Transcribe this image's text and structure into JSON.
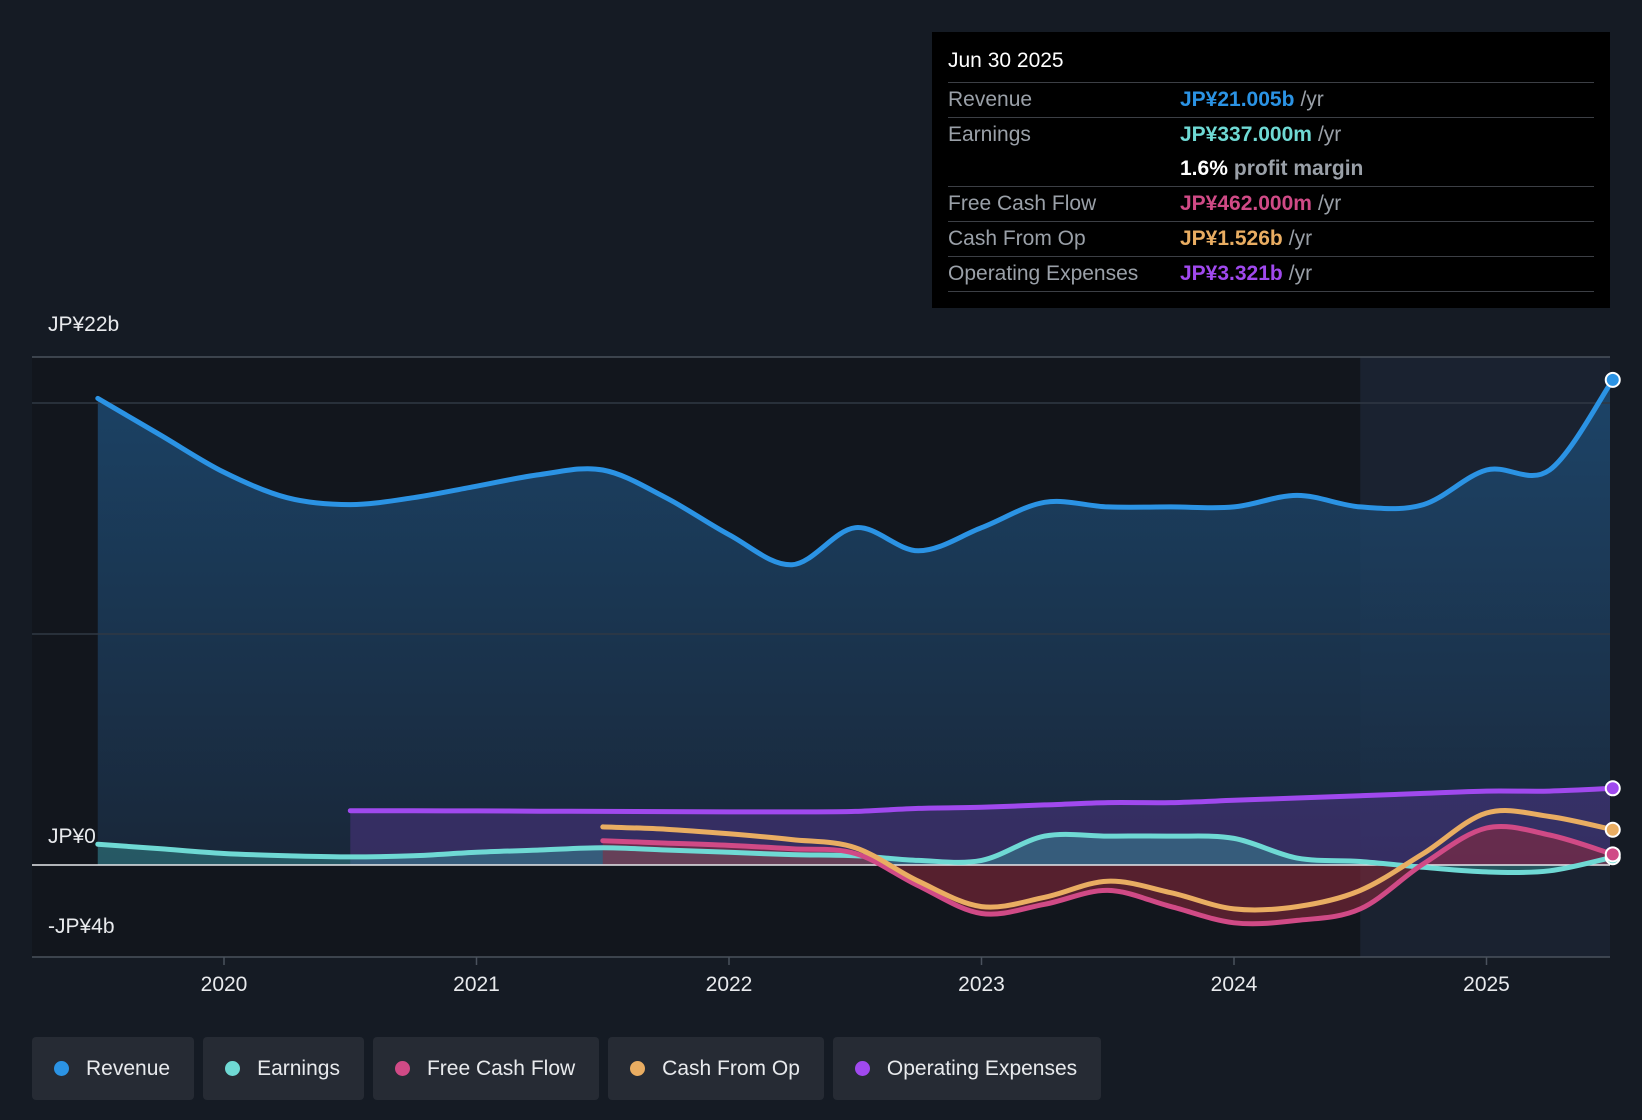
{
  "colors": {
    "revenue": "#2b93e4",
    "earnings": "#6fd9d4",
    "free_cash_flow": "#d04a86",
    "cash_from_op": "#e9ad62",
    "operating_expenses": "#a049ee"
  },
  "tooltip": {
    "date": "Jun 30 2025",
    "rows": [
      {
        "label": "Revenue",
        "value": "JP¥21.005b",
        "unit": "/yr"
      },
      {
        "label": "Earnings",
        "value": "JP¥337.000m",
        "unit": "/yr"
      },
      {
        "label": "",
        "value": "1.6%",
        "unit": "profit margin"
      },
      {
        "label": "Free Cash Flow",
        "value": "JP¥462.000m",
        "unit": "/yr"
      },
      {
        "label": "Cash From Op",
        "value": "JP¥1.526b",
        "unit": "/yr"
      },
      {
        "label": "Operating Expenses",
        "value": "JP¥3.321b",
        "unit": "/yr"
      }
    ]
  },
  "legend": {
    "items": [
      {
        "label": "Revenue",
        "icon": "revenue-dot-icon"
      },
      {
        "label": "Earnings",
        "icon": "earnings-dot-icon"
      },
      {
        "label": "Free Cash Flow",
        "icon": "free-cash-flow-dot-icon"
      },
      {
        "label": "Cash From Op",
        "icon": "cash-from-op-dot-icon"
      },
      {
        "label": "Operating Expenses",
        "icon": "operating-expenses-dot-icon"
      }
    ]
  },
  "chart_data": {
    "type": "area",
    "title": "",
    "xlabel": "",
    "ylabel": "",
    "y_tick_labels": [
      "JP¥22b",
      "JP¥0",
      "-JP¥4b"
    ],
    "y_ticks": [
      22,
      0,
      -4
    ],
    "x_tick_labels": [
      "2020",
      "2021",
      "2022",
      "2023",
      "2024",
      "2025"
    ],
    "x_ticks": [
      2020,
      2021,
      2022,
      2023,
      2024,
      2025
    ],
    "xlim": [
      2019.25,
      2025.5
    ],
    "ylim": [
      -4,
      22
    ],
    "gridlines": [
      20,
      10
    ],
    "shaded_from": 2024.5,
    "series": [
      {
        "name": "Revenue",
        "key": "revenue",
        "x": [
          2019.5,
          2019.75,
          2020.0,
          2020.25,
          2020.5,
          2020.75,
          2021.0,
          2021.25,
          2021.5,
          2021.75,
          2022.0,
          2022.25,
          2022.5,
          2022.75,
          2023.0,
          2023.25,
          2023.5,
          2023.75,
          2024.0,
          2024.25,
          2024.5,
          2024.75,
          2025.0,
          2025.25,
          2025.5
        ],
        "values": [
          20.2,
          18.6,
          17.0,
          15.9,
          15.6,
          15.9,
          16.4,
          16.9,
          17.1,
          15.9,
          14.3,
          13.0,
          14.6,
          13.6,
          14.6,
          15.7,
          15.5,
          15.5,
          15.5,
          16.0,
          15.5,
          15.6,
          17.1,
          17.1,
          21.0
        ]
      },
      {
        "name": "Earnings",
        "key": "earnings",
        "x": [
          2019.5,
          2019.75,
          2020.0,
          2020.25,
          2020.5,
          2020.75,
          2021.0,
          2021.25,
          2021.5,
          2021.75,
          2022.0,
          2022.25,
          2022.5,
          2022.75,
          2023.0,
          2023.25,
          2023.5,
          2023.75,
          2024.0,
          2024.25,
          2024.5,
          2024.75,
          2025.0,
          2025.25,
          2025.5
        ],
        "values": [
          0.9,
          0.7,
          0.5,
          0.4,
          0.35,
          0.4,
          0.55,
          0.65,
          0.75,
          0.65,
          0.55,
          0.45,
          0.4,
          0.2,
          0.2,
          1.25,
          1.25,
          1.25,
          1.15,
          0.3,
          0.15,
          -0.1,
          -0.3,
          -0.25,
          0.337
        ]
      },
      {
        "name": "Free Cash Flow",
        "key": "free_cash_flow",
        "x": [
          2021.5,
          2021.75,
          2022.0,
          2022.25,
          2022.5,
          2022.75,
          2023.0,
          2023.25,
          2023.5,
          2023.75,
          2024.0,
          2024.25,
          2024.5,
          2024.75,
          2025.0,
          2025.25,
          2025.5
        ],
        "values": [
          1.05,
          0.95,
          0.85,
          0.7,
          0.5,
          -0.9,
          -2.1,
          -1.7,
          -1.1,
          -1.8,
          -2.5,
          -2.4,
          -1.9,
          0.05,
          1.6,
          1.3,
          0.462
        ]
      },
      {
        "name": "Cash From Op",
        "key": "cash_from_op",
        "x": [
          2021.5,
          2021.75,
          2022.0,
          2022.25,
          2022.5,
          2022.75,
          2023.0,
          2023.25,
          2023.5,
          2023.75,
          2024.0,
          2024.25,
          2024.5,
          2024.75,
          2025.0,
          2025.25,
          2025.5
        ],
        "values": [
          1.65,
          1.55,
          1.35,
          1.1,
          0.75,
          -0.7,
          -1.8,
          -1.4,
          -0.7,
          -1.2,
          -1.9,
          -1.8,
          -1.1,
          0.5,
          2.25,
          2.1,
          1.526
        ]
      },
      {
        "name": "Operating Expenses",
        "key": "operating_expenses",
        "x": [
          2020.5,
          2020.75,
          2021.0,
          2021.25,
          2021.5,
          2021.75,
          2022.0,
          2022.25,
          2022.5,
          2022.75,
          2023.0,
          2023.25,
          2023.5,
          2023.75,
          2024.0,
          2024.25,
          2024.5,
          2024.75,
          2025.0,
          2025.25,
          2025.5
        ],
        "values": [
          2.35,
          2.35,
          2.34,
          2.33,
          2.32,
          2.31,
          2.3,
          2.3,
          2.32,
          2.45,
          2.5,
          2.6,
          2.7,
          2.7,
          2.8,
          2.9,
          3.0,
          3.1,
          3.2,
          3.2,
          3.321
        ]
      }
    ]
  }
}
